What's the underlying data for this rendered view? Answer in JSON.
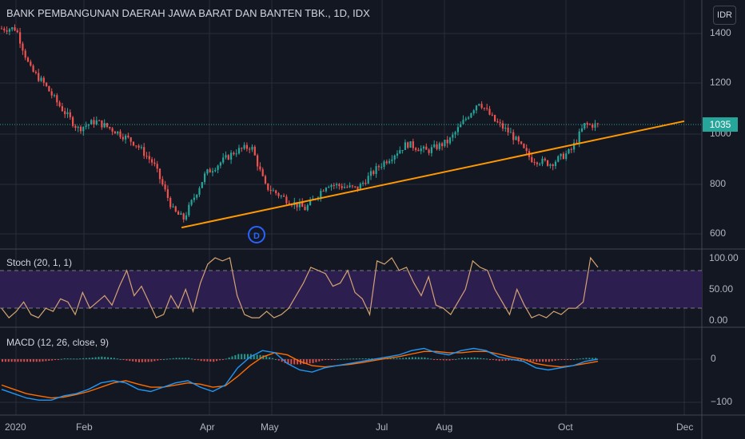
{
  "header": {
    "title": "BANK PEMBANGUNAN DAERAH JAWA BARAT DAN BANTEN TBK., 1D, IDX",
    "currency": "IDR"
  },
  "price_axis": {
    "ticks": [
      "1400",
      "1200",
      "1000",
      "800",
      "600"
    ]
  },
  "last_price": "1035",
  "stoch": {
    "label": "Stoch (20, 1, 1)",
    "ticks": [
      "100.00",
      "50.00",
      "0.00"
    ]
  },
  "macd": {
    "label": "MACD (12, 26, close, 9)",
    "ticks": [
      "0",
      "−100"
    ]
  },
  "time_axis": {
    "labels": [
      "2020",
      "Feb",
      "Apr",
      "May",
      "Jul",
      "Aug",
      "Oct",
      "Dec"
    ]
  },
  "marker": {
    "dividend": "D"
  },
  "colors": {
    "up": "#26a69a",
    "down": "#ef5350",
    "trendline": "#ff9800",
    "stoch_band": "#2c1e4f",
    "stoch_line": "#d4a373",
    "macd_line": "#2196f3",
    "signal_line": "#ff6d00",
    "background": "#131722"
  },
  "chart_data": {
    "type": "candlestick",
    "title": "BANK PEMBANGUNAN DAERAH JAWA BARAT DAN BANTEN TBK., 1D, IDX",
    "x_labels": [
      "2020",
      "Feb",
      "Apr",
      "May",
      "Jul",
      "Aug",
      "Oct",
      "Dec"
    ],
    "y_range": [
      560,
      1470
    ],
    "last_close": 1035,
    "price_path": [
      [
        "2020-01-01",
        1420
      ],
      [
        "2020-01-08",
        1260
      ],
      [
        "2020-01-15",
        1200
      ],
      [
        "2020-01-22",
        1120
      ],
      [
        "2020-02-01",
        1020
      ],
      [
        "2020-02-10",
        1050
      ],
      [
        "2020-02-20",
        1010
      ],
      [
        "2020-03-01",
        960
      ],
      [
        "2020-03-10",
        880
      ],
      [
        "2020-03-20",
        690
      ],
      [
        "2020-03-25",
        660
      ],
      [
        "2020-04-05",
        840
      ],
      [
        "2020-04-20",
        930
      ],
      [
        "2020-04-28",
        950
      ],
      [
        "2020-05-05",
        790
      ],
      [
        "2020-05-15",
        740
      ],
      [
        "2020-05-25",
        700
      ],
      [
        "2020-06-05",
        800
      ],
      [
        "2020-06-20",
        780
      ],
      [
        "2020-07-01",
        870
      ],
      [
        "2020-07-15",
        960
      ],
      [
        "2020-07-25",
        930
      ],
      [
        "2020-08-05",
        970
      ],
      [
        "2020-08-20",
        1130
      ],
      [
        "2020-08-28",
        1050
      ],
      [
        "2020-09-05",
        1000
      ],
      [
        "2020-09-15",
        900
      ],
      [
        "2020-09-25",
        880
      ],
      [
        "2020-10-05",
        930
      ],
      [
        "2020-10-12",
        1035
      ]
    ],
    "trendline": {
      "from": [
        "2020-03-24",
        625
      ],
      "to": [
        "2020-12-01",
        1050
      ]
    },
    "stoch": {
      "y_range": [
        0,
        100
      ],
      "band": [
        20,
        80
      ],
      "values": [
        20,
        5,
        15,
        30,
        10,
        5,
        20,
        15,
        35,
        30,
        10,
        45,
        20,
        30,
        40,
        25,
        55,
        80,
        40,
        55,
        30,
        5,
        10,
        40,
        20,
        50,
        15,
        60,
        90,
        100,
        95,
        100,
        40,
        10,
        5,
        5,
        15,
        5,
        10,
        20,
        40,
        60,
        85,
        80,
        75,
        55,
        60,
        80,
        45,
        35,
        10,
        95,
        90,
        100,
        80,
        85,
        60,
        40,
        70,
        25,
        20,
        10,
        30,
        50,
        95,
        85,
        80,
        50,
        30,
        10,
        50,
        25,
        5,
        10,
        5,
        15,
        10,
        20,
        20,
        30,
        100,
        85
      ]
    },
    "macd": {
      "y_range": [
        -110,
        30
      ],
      "zero": 0,
      "macd_line": [
        -70,
        -80,
        -90,
        -95,
        -95,
        -85,
        -80,
        -70,
        -55,
        -50,
        -55,
        -70,
        -75,
        -65,
        -55,
        -50,
        -65,
        -75,
        -60,
        -20,
        5,
        20,
        15,
        -10,
        -25,
        -30,
        -20,
        -15,
        -10,
        -5,
        0,
        5,
        10,
        20,
        25,
        15,
        10,
        20,
        25,
        20,
        5,
        0,
        -5,
        -20,
        -25,
        -20,
        -15,
        -5,
        0
      ],
      "signal_line": [
        -60,
        -70,
        -80,
        -85,
        -90,
        -88,
        -82,
        -75,
        -65,
        -55,
        -50,
        -58,
        -65,
        -65,
        -60,
        -55,
        -58,
        -65,
        -62,
        -40,
        -15,
        5,
        15,
        10,
        -5,
        -15,
        -18,
        -15,
        -12,
        -8,
        -3,
        2,
        6,
        12,
        18,
        18,
        15,
        15,
        18,
        18,
        12,
        5,
        0,
        -10,
        -15,
        -18,
        -15,
        -10,
        -5
      ]
    }
  }
}
